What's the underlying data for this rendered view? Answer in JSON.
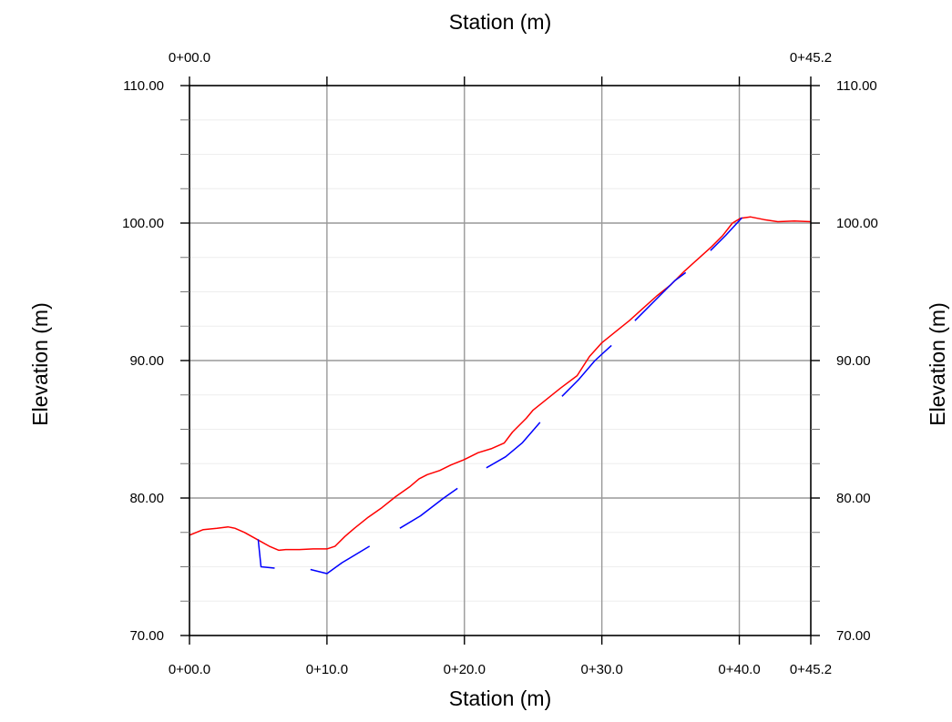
{
  "chart_data": {
    "type": "line",
    "title": "",
    "xlabel": "Station (m)",
    "xlabel_top": "Station (m)",
    "ylabel": "Elevation (m)",
    "ylabel_right": "Elevation (m)",
    "xlim": [
      0,
      45.2
    ],
    "ylim": [
      70,
      110
    ],
    "grid": true,
    "x_ticks": [
      {
        "value": 0,
        "label": "0+00.0"
      },
      {
        "value": 10,
        "label": "0+10.0"
      },
      {
        "value": 20,
        "label": "0+20.0"
      },
      {
        "value": 30,
        "label": "0+30.0"
      },
      {
        "value": 40,
        "label": "0+40.0"
      },
      {
        "value": 45.2,
        "label": "0+45.2"
      }
    ],
    "top_ticks": [
      {
        "value": 0,
        "label": "0+00.0"
      },
      {
        "value": 45.2,
        "label": "0+45.2"
      }
    ],
    "y_ticks": [
      {
        "value": 70,
        "label": "70.00"
      },
      {
        "value": 80,
        "label": "80.00"
      },
      {
        "value": 90,
        "label": "90.00"
      },
      {
        "value": 100,
        "label": "100.00"
      },
      {
        "value": 110,
        "label": "110.00"
      }
    ],
    "y_minor_step": 2.5,
    "series": [
      {
        "color": "#ff0000",
        "segments": [
          [
            [
              0,
              77.3
            ],
            [
              1,
              77.7
            ],
            [
              2,
              77.8
            ],
            [
              2.8,
              77.9
            ],
            [
              3.3,
              77.8
            ],
            [
              4,
              77.5
            ],
            [
              4.9,
              77
            ],
            [
              5.8,
              76.5
            ],
            [
              6.5,
              76.2
            ],
            [
              7,
              76.25
            ],
            [
              8,
              76.25
            ],
            [
              9,
              76.3
            ],
            [
              10,
              76.3
            ],
            [
              10.6,
              76.5
            ],
            [
              11.3,
              77.2
            ],
            [
              12,
              77.8
            ],
            [
              13,
              78.6
            ],
            [
              14,
              79.3
            ],
            [
              15,
              80.1
            ],
            [
              16,
              80.8
            ],
            [
              16.7,
              81.4
            ],
            [
              17.3,
              81.7
            ],
            [
              18.2,
              82
            ],
            [
              19,
              82.4
            ],
            [
              20,
              82.8
            ],
            [
              21,
              83.3
            ],
            [
              22,
              83.6
            ],
            [
              22.9,
              84
            ],
            [
              23.5,
              84.8
            ],
            [
              24.5,
              85.8
            ],
            [
              25,
              86.4
            ],
            [
              26,
              87.2
            ],
            [
              27,
              88
            ],
            [
              28.2,
              88.9
            ],
            [
              29.1,
              90.3
            ],
            [
              30,
              91.3
            ],
            [
              31,
              92.1
            ],
            [
              32,
              92.9
            ],
            [
              33,
              93.8
            ],
            [
              34,
              94.7
            ],
            [
              35,
              95.5
            ],
            [
              36,
              96.5
            ],
            [
              37,
              97.4
            ],
            [
              38,
              98.3
            ],
            [
              38.8,
              99.1
            ],
            [
              39.5,
              100
            ],
            [
              40.1,
              100.35
            ],
            [
              40.8,
              100.45
            ],
            [
              41.8,
              100.25
            ],
            [
              42.8,
              100.1
            ],
            [
              44,
              100.15
            ],
            [
              45.2,
              100.1
            ]
          ]
        ]
      },
      {
        "color": "#0000ff",
        "segments": [
          [
            [
              5,
              77
            ],
            [
              5.2,
              75
            ],
            [
              6.2,
              74.9
            ]
          ],
          [
            [
              8.8,
              74.8
            ],
            [
              10,
              74.5
            ],
            [
              11.1,
              75.3
            ],
            [
              13.1,
              76.5
            ]
          ],
          [
            [
              15.3,
              77.8
            ],
            [
              16.8,
              78.7
            ],
            [
              18.5,
              80
            ],
            [
              19.5,
              80.7
            ]
          ],
          [
            [
              21.6,
              82.2
            ],
            [
              23,
              83
            ],
            [
              24.2,
              84
            ],
            [
              25.5,
              85.5
            ]
          ],
          [
            [
              27.1,
              87.4
            ],
            [
              28.3,
              88.6
            ],
            [
              29.5,
              90
            ],
            [
              30.7,
              91.1
            ]
          ],
          [
            [
              32.4,
              92.9
            ],
            [
              34,
              94.5
            ],
            [
              35.3,
              95.8
            ],
            [
              36.1,
              96.4
            ]
          ],
          [
            [
              37.9,
              98
            ],
            [
              39,
              99.1
            ],
            [
              40.2,
              100.4
            ]
          ]
        ]
      }
    ]
  }
}
